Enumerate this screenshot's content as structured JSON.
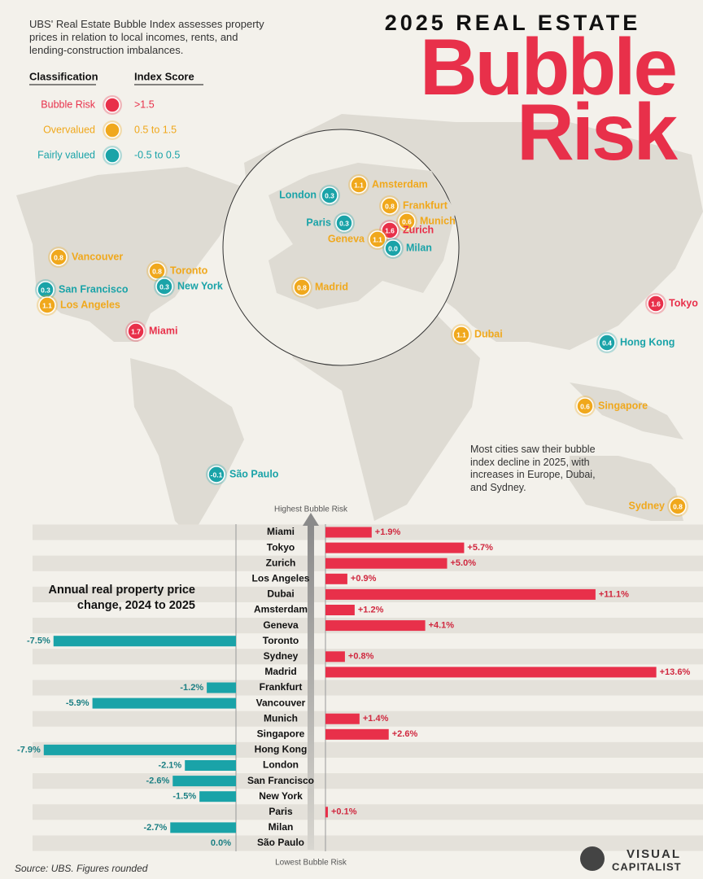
{
  "header": {
    "title_top": "2025 REAL ESTATE",
    "title_word1": "Bubble",
    "title_word2": "Risk"
  },
  "intro": "UBS' Real Estate Bubble Index assesses property prices in relation to local incomes, rents, and lending-construction imbalances.",
  "legend": {
    "headers": [
      "Classification",
      "Index Score"
    ],
    "rows": [
      {
        "label": "Bubble Risk",
        "color": "#e8304a",
        "range": ">1.5"
      },
      {
        "label": "Overvalued",
        "color": "#f0a81c",
        "range": "0.5 to 1.5"
      },
      {
        "label": "Fairly valued",
        "color": "#1aa3a8",
        "range": "-0.5 to 0.5"
      }
    ]
  },
  "map": {
    "cities": [
      {
        "name": "Amsterdam",
        "score": 1.1,
        "color": "#f0a81c"
      },
      {
        "name": "London",
        "score": 0.3,
        "color": "#1aa3a8"
      },
      {
        "name": "Frankfurt",
        "score": 0.8,
        "color": "#f0a81c"
      },
      {
        "name": "Paris",
        "score": 0.3,
        "color": "#1aa3a8"
      },
      {
        "name": "Munich",
        "score": 0.6,
        "color": "#f0a81c"
      },
      {
        "name": "Zurich",
        "score": 1.6,
        "color": "#e8304a"
      },
      {
        "name": "Geneva",
        "score": 1.1,
        "color": "#f0a81c"
      },
      {
        "name": "Milan",
        "score": 0,
        "score_label": "0.0",
        "color": "#1aa3a8"
      },
      {
        "name": "Vancouver",
        "score": 0.8,
        "color": "#f0a81c"
      },
      {
        "name": "Toronto",
        "score": 0.8,
        "color": "#f0a81c"
      },
      {
        "name": "New York",
        "score": 0.3,
        "color": "#1aa3a8"
      },
      {
        "name": "San Francisco",
        "score": 0.3,
        "color": "#1aa3a8"
      },
      {
        "name": "Los Angeles",
        "score": 1.1,
        "color": "#f0a81c"
      },
      {
        "name": "Madrid",
        "score": 0.8,
        "color": "#f0a81c"
      },
      {
        "name": "Tokyo",
        "score": 1.6,
        "color": "#e8304a"
      },
      {
        "name": "Miami",
        "score": 1.7,
        "color": "#e8304a"
      },
      {
        "name": "Dubai",
        "score": 1.1,
        "color": "#f0a81c"
      },
      {
        "name": "Hong Kong",
        "score": 0.4,
        "color": "#1aa3a8"
      },
      {
        "name": "Singapore",
        "score": 0.6,
        "color": "#f0a81c"
      },
      {
        "name": "São Paulo",
        "score": -0.1,
        "color": "#1aa3a8"
      },
      {
        "name": "Sydney",
        "score": 0.8,
        "color": "#f0a81c"
      }
    ]
  },
  "note": "Most cities saw their bubble index decline in 2025, with increases in Europe, Dubai, and Sydney.",
  "chart_data": {
    "type": "bar",
    "title": "Annual real property price change, 2024 to 2025",
    "top_label": "Highest Bubble Risk",
    "bottom_label": "Lowest Bubble Risk",
    "categories": [
      "Miami",
      "Tokyo",
      "Zurich",
      "Los Angeles",
      "Dubai",
      "Amsterdam",
      "Geneva",
      "Toronto",
      "Sydney",
      "Madrid",
      "Frankfurt",
      "Vancouver",
      "Munich",
      "Singapore",
      "Hong Kong",
      "London",
      "San Francisco",
      "New York",
      "Paris",
      "Milan",
      "São Paulo"
    ],
    "values": [
      1.9,
      5.7,
      5.0,
      0.9,
      11.1,
      1.2,
      4.1,
      -7.5,
      0.8,
      13.6,
      -1.2,
      -5.9,
      1.4,
      2.6,
      -7.9,
      -2.1,
      -2.6,
      -1.5,
      0.1,
      -2.7,
      0.0
    ],
    "value_labels": [
      "+1.9%",
      "+5.7%",
      "+5.0%",
      "+0.9%",
      "+11.1%",
      "+1.2%",
      "+4.1%",
      "-7.5%",
      "+0.8%",
      "+13.6%",
      "-1.2%",
      "-5.9%",
      "+1.4%",
      "+2.6%",
      "-7.9%",
      "-2.1%",
      "-2.6%",
      "-1.5%",
      "+0.1%",
      "-2.7%",
      "0.0%"
    ],
    "positive_color": "#e8304a",
    "negative_color": "#1aa3a8"
  },
  "source": "Source: UBS. Figures rounded",
  "brand": [
    "VISUAL",
    "CAPITALIST"
  ]
}
